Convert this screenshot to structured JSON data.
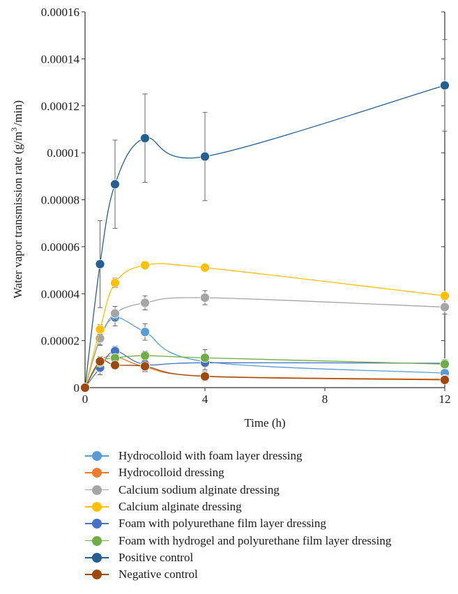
{
  "chart_data": {
    "type": "line",
    "title": "",
    "xlabel": "Time (h)",
    "ylabel": "Water vapor transmission rate (g/m",
    "ylabel_sup": "3",
    "ylabel_tail": "/min)",
    "xlim": [
      0,
      12
    ],
    "ylim": [
      0,
      0.00016
    ],
    "x_ticks": [
      0,
      4,
      8,
      12
    ],
    "x_tick_labels": [
      "0",
      "4",
      "8",
      "12"
    ],
    "y_ticks": [
      0,
      2e-05,
      4e-05,
      6e-05,
      8e-05,
      0.0001,
      0.00012,
      0.00014,
      0.00016
    ],
    "y_tick_labels": [
      "0",
      "0.00002",
      "0.00004",
      "0.00006",
      "0.00008",
      "0.0001",
      "0.00012",
      "0.00014",
      "0.00016"
    ],
    "grid": false,
    "legend_position": "bottom",
    "series": [
      {
        "name": "Hydrocolloid with foam layer dressing",
        "color": "#5b9bd5",
        "x": [
          0,
          0.5,
          1,
          2,
          4,
          12
        ],
        "y": [
          0,
          2.07e-05,
          2.98e-05,
          2.37e-05,
          1.11e-05,
          6.2e-06
        ],
        "err": [
          0,
          2.5e-06,
          3.5e-06,
          3.5e-06,
          2e-06,
          2e-06
        ]
      },
      {
        "name": "Hydrocolloid dressing",
        "color": "#ed7d31",
        "x": [
          0,
          0.5,
          1,
          2,
          4,
          12
        ],
        "y": [
          0,
          1.12e-05,
          1.33e-05,
          8.8e-06,
          4.9e-06,
          3.6e-06
        ],
        "err": [
          0,
          2e-06,
          1.5e-06,
          2e-06,
          2e-06,
          1e-06
        ]
      },
      {
        "name": "Calcium sodium alginate dressing",
        "color": "#a5a5a5",
        "x": [
          0,
          0.5,
          1,
          2,
          4,
          12
        ],
        "y": [
          0,
          2.1e-05,
          3.16e-05,
          3.61e-05,
          3.83e-05,
          3.43e-05
        ],
        "err": [
          0,
          3e-06,
          3e-06,
          3e-06,
          3e-06,
          3e-06
        ]
      },
      {
        "name": "Calcium alginate dressing",
        "color": "#ffc000",
        "x": [
          0,
          0.5,
          1,
          2,
          4,
          12
        ],
        "y": [
          0,
          2.48e-05,
          4.46e-05,
          5.21e-05,
          5.11e-05,
          3.91e-05
        ],
        "err": [
          0,
          2e-06,
          2e-06,
          1e-06,
          1e-06,
          1e-06
        ]
      },
      {
        "name": "Foam with polyurethane film layer dressing",
        "color": "#4472c4",
        "x": [
          0,
          0.5,
          1,
          2,
          4,
          12
        ],
        "y": [
          0,
          8.5e-06,
          1.56e-05,
          9.9e-06,
          1.06e-05,
          1.04e-05
        ],
        "err": [
          0,
          3e-06,
          2e-06,
          2e-06,
          3e-06,
          1e-06
        ]
      },
      {
        "name": "Foam with hydrogel and polyurethane film layer dressing",
        "color": "#70ad47",
        "x": [
          0,
          0.5,
          1,
          2,
          4,
          12
        ],
        "y": [
          0,
          1.07e-05,
          1.26e-05,
          1.36e-05,
          1.27e-05,
          1e-05
        ],
        "err": [
          0,
          1.5e-06,
          1.5e-06,
          2e-06,
          3.5e-06,
          1e-06
        ]
      },
      {
        "name": "Positive control",
        "color": "#255e91",
        "x": [
          0,
          0.5,
          1,
          2,
          4,
          12
        ],
        "y": [
          0,
          5.26e-05,
          8.66e-05,
          0.0001062,
          9.84e-05,
          0.0001287
        ],
        "err": [
          0,
          1.85e-05,
          1.88e-05,
          1.88e-05,
          1.88e-05,
          1.95e-05
        ]
      },
      {
        "name": "Negative control",
        "color": "#9e480e",
        "x": [
          0,
          0.5,
          1,
          2,
          4,
          12
        ],
        "y": [
          0,
          1.12e-05,
          9.6e-06,
          9.1e-06,
          4.8e-06,
          3.3e-06
        ],
        "err": [
          0,
          1e-06,
          1e-06,
          2e-06,
          1.5e-06,
          1e-06
        ]
      }
    ]
  }
}
